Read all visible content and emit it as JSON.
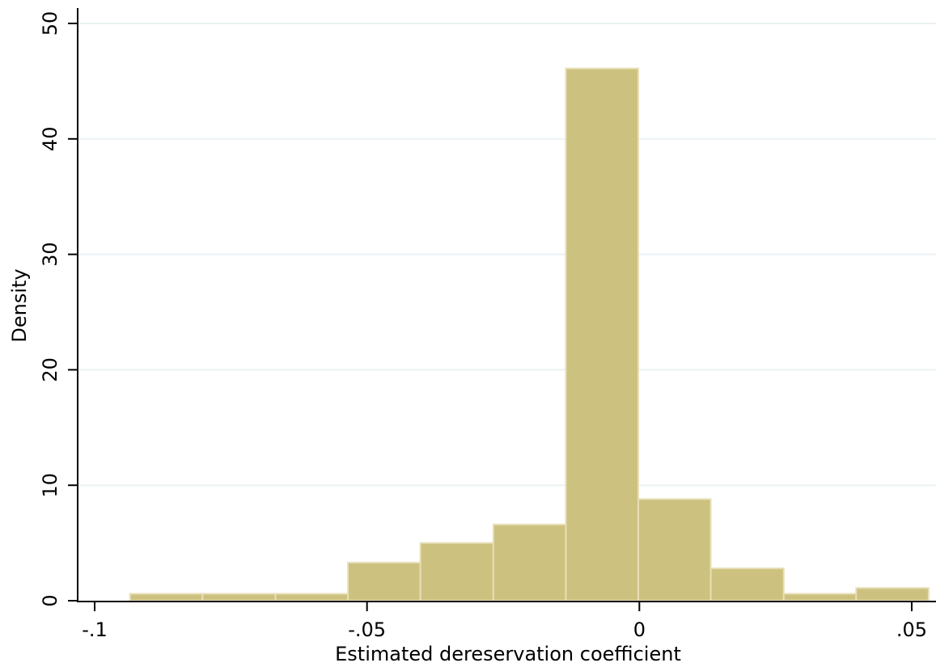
{
  "chart_data": {
    "type": "bar",
    "title": "",
    "xlabel": "Estimated dereservation coefficient",
    "ylabel": "Density",
    "xlim": [
      -0.1,
      0.052
    ],
    "ylim": [
      0,
      50
    ],
    "x_ticks": [
      {
        "value": -0.1,
        "label": "-.1"
      },
      {
        "value": -0.05,
        "label": "-.05"
      },
      {
        "value": 0,
        "label": "0"
      },
      {
        "value": 0.05,
        "label": ".05"
      }
    ],
    "y_ticks": [
      {
        "value": 0,
        "label": "0"
      },
      {
        "value": 10,
        "label": "10"
      },
      {
        "value": 20,
        "label": "20"
      },
      {
        "value": 30,
        "label": "30"
      },
      {
        "value": 40,
        "label": "40"
      },
      {
        "value": 50,
        "label": "50"
      }
    ],
    "grid": true,
    "bar_color": "#cdc17f",
    "bar_edge_color": "#e6dfb8",
    "bins": [
      {
        "x0": -0.0935,
        "x1": -0.0802,
        "value": 0.6
      },
      {
        "x0": -0.0802,
        "x1": -0.0668,
        "value": 0.6
      },
      {
        "x0": -0.0668,
        "x1": -0.0535,
        "value": 0.6
      },
      {
        "x0": -0.0535,
        "x1": -0.0402,
        "value": 3.3
      },
      {
        "x0": -0.0402,
        "x1": -0.0268,
        "value": 5.0
      },
      {
        "x0": -0.0268,
        "x1": -0.0135,
        "value": 6.6
      },
      {
        "x0": -0.0135,
        "x1": -0.0002,
        "value": 46.1
      },
      {
        "x0": -0.0002,
        "x1": 0.0131,
        "value": 8.8
      },
      {
        "x0": 0.0131,
        "x1": 0.0265,
        "value": 2.8
      },
      {
        "x0": 0.0265,
        "x1": 0.0398,
        "value": 0.6
      },
      {
        "x0": 0.0398,
        "x1": 0.0531,
        "value": 1.1
      }
    ]
  }
}
